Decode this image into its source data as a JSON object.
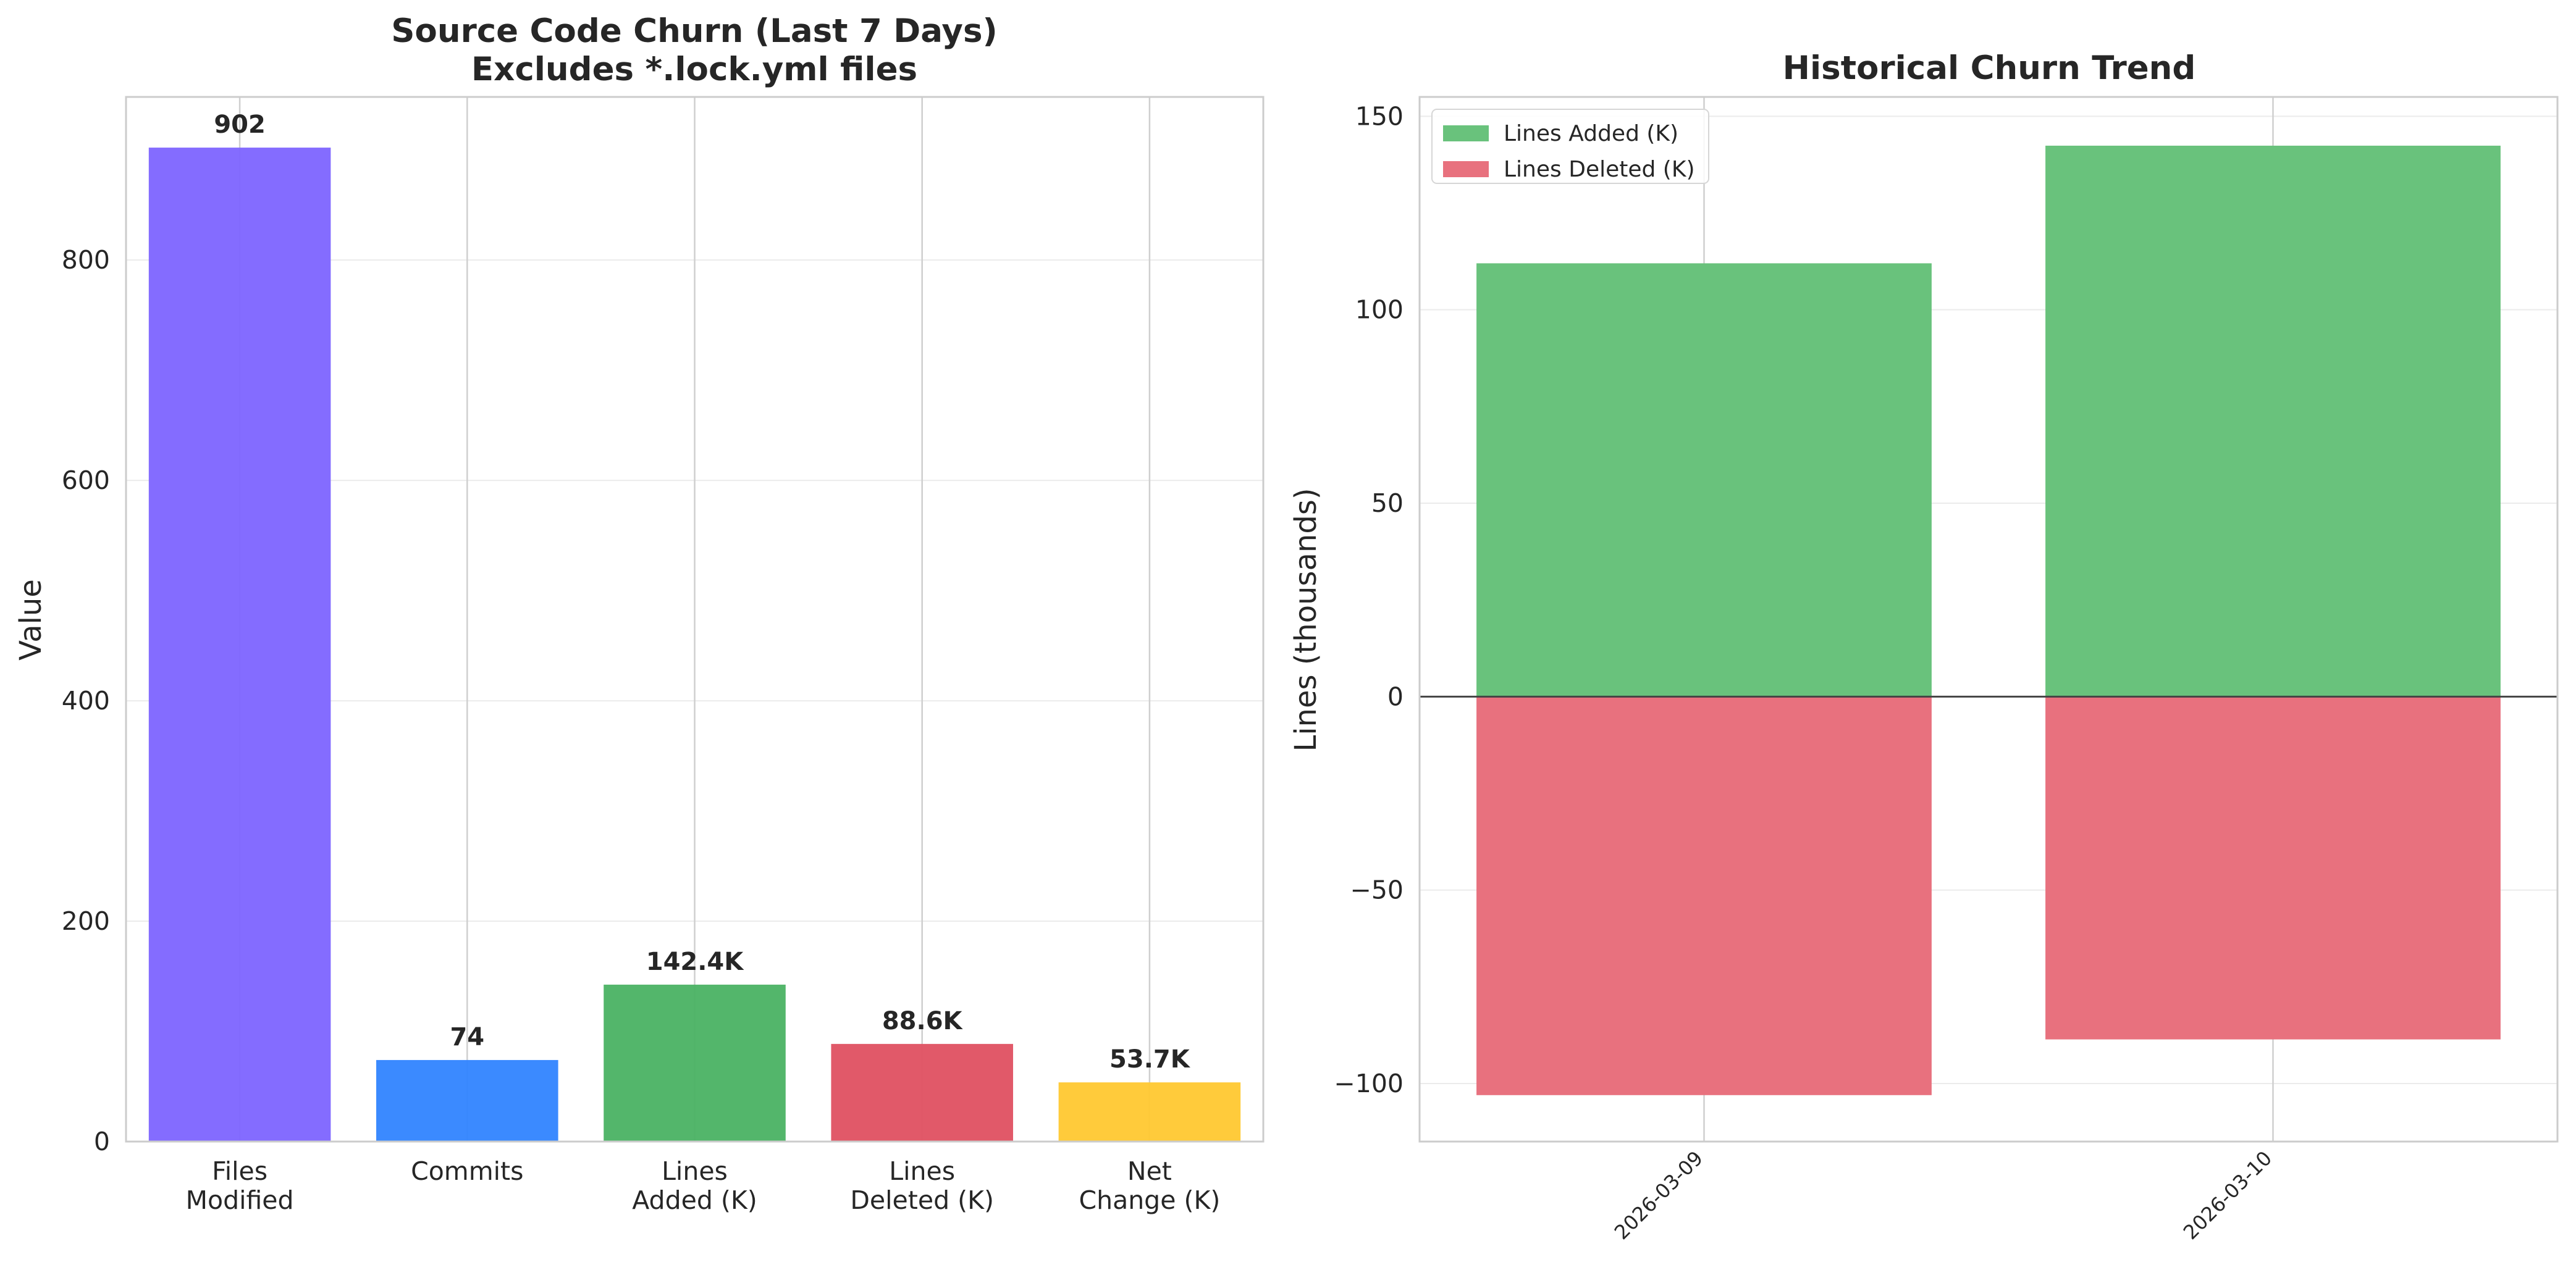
{
  "chart_data": [
    {
      "type": "bar",
      "title": "Source Code Churn (Last 7 Days)",
      "subtitle": "Excludes *.lock.yml files",
      "xlabel": "",
      "ylabel": "Value",
      "ylim": [
        0,
        948
      ],
      "yticks": [
        0,
        200,
        400,
        600,
        800
      ],
      "grid": true,
      "categories": [
        [
          "Files",
          "Modified"
        ],
        [
          "Commits"
        ],
        [
          "Lines",
          "Added (K)"
        ],
        [
          "Lines",
          "Deleted (K)"
        ],
        [
          "Net",
          "Change (K)"
        ]
      ],
      "values": [
        902,
        74,
        142.4,
        88.6,
        53.7
      ],
      "value_labels": [
        "902",
        "74",
        "142.4K",
        "88.6K",
        "53.7K"
      ],
      "colors": [
        "#7f66ff",
        "#3385ff",
        "#4cb365",
        "#e05263",
        "#ffc933"
      ]
    },
    {
      "type": "bar",
      "title": "Historical Churn Trend",
      "xlabel": "",
      "ylabel": "Lines (thousands)",
      "ylim": [
        -115,
        155
      ],
      "yticks": [
        -100,
        -50,
        0,
        50,
        100,
        150
      ],
      "ytick_labels": [
        "−100",
        "−50",
        "0",
        "50",
        "100",
        "150"
      ],
      "grid": true,
      "legend_position": "top-left",
      "categories": [
        "2026-03-09",
        "2026-03-10"
      ],
      "series": [
        {
          "name": "Lines Added (K)",
          "values": [
            112,
            142.4
          ],
          "color": "#69c27c"
        },
        {
          "name": "Lines Deleted (K)",
          "values": [
            -103,
            -88.6
          ],
          "color": "#e8717e"
        }
      ]
    }
  ]
}
